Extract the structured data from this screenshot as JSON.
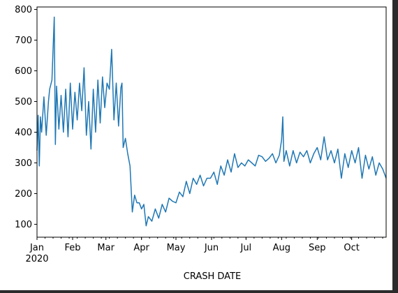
{
  "chart_data": {
    "type": "line",
    "xlabel": "CRASH DATE",
    "ylabel": "",
    "title": "",
    "x_range": [
      "2020-01-01",
      "2020-10-31"
    ],
    "ylim": [
      58,
      808
    ],
    "grid": false,
    "y_ticks": [
      100,
      200,
      300,
      400,
      500,
      600,
      700,
      800
    ],
    "x_ticks": [
      {
        "date": "2020-01-01",
        "label": "Jan",
        "sublabel": "2020"
      },
      {
        "date": "2020-02-01",
        "label": "Feb"
      },
      {
        "date": "2020-03-01",
        "label": "Mar"
      },
      {
        "date": "2020-04-01",
        "label": "Apr"
      },
      {
        "date": "2020-05-01",
        "label": "May"
      },
      {
        "date": "2020-06-01",
        "label": "Jun"
      },
      {
        "date": "2020-07-01",
        "label": "Jul"
      },
      {
        "date": "2020-08-01",
        "label": "Aug"
      },
      {
        "date": "2020-09-01",
        "label": "Sep"
      },
      {
        "date": "2020-10-01",
        "label": "Oct"
      }
    ],
    "line_color": "#1f77b4",
    "series": [
      {
        "x": [
          "2020-01-01",
          "2020-01-02",
          "2020-01-03",
          "2020-01-04",
          "2020-01-05",
          "2020-01-07",
          "2020-01-09",
          "2020-01-11",
          "2020-01-12",
          "2020-01-14",
          "2020-01-16",
          "2020-01-17",
          "2020-01-18",
          "2020-01-20",
          "2020-01-22",
          "2020-01-24",
          "2020-01-26",
          "2020-01-28",
          "2020-01-30",
          "2020-02-01",
          "2020-02-03",
          "2020-02-05",
          "2020-02-07",
          "2020-02-09",
          "2020-02-11",
          "2020-02-13",
          "2020-02-15",
          "2020-02-17",
          "2020-02-19",
          "2020-02-21",
          "2020-02-23",
          "2020-02-25",
          "2020-02-27",
          "2020-02-29",
          "2020-03-02",
          "2020-03-04",
          "2020-03-06",
          "2020-03-08",
          "2020-03-10",
          "2020-03-12",
          "2020-03-14",
          "2020-03-15",
          "2020-03-16",
          "2020-03-18",
          "2020-03-20",
          "2020-03-22",
          "2020-03-24",
          "2020-03-26",
          "2020-03-28",
          "2020-03-30",
          "2020-04-01",
          "2020-04-03",
          "2020-04-05",
          "2020-04-07",
          "2020-04-10",
          "2020-04-13",
          "2020-04-16",
          "2020-04-19",
          "2020-04-22",
          "2020-04-25",
          "2020-04-28",
          "2020-05-01",
          "2020-05-04",
          "2020-05-07",
          "2020-05-10",
          "2020-05-13",
          "2020-05-16",
          "2020-05-19",
          "2020-05-22",
          "2020-05-25",
          "2020-05-28",
          "2020-05-31",
          "2020-06-03",
          "2020-06-06",
          "2020-06-09",
          "2020-06-12",
          "2020-06-15",
          "2020-06-18",
          "2020-06-21",
          "2020-06-24",
          "2020-06-27",
          "2020-06-30",
          "2020-07-03",
          "2020-07-06",
          "2020-07-09",
          "2020-07-12",
          "2020-07-15",
          "2020-07-18",
          "2020-07-21",
          "2020-07-24",
          "2020-07-27",
          "2020-07-30",
          "2020-08-01",
          "2020-08-02",
          "2020-08-03",
          "2020-08-05",
          "2020-08-08",
          "2020-08-11",
          "2020-08-14",
          "2020-08-17",
          "2020-08-20",
          "2020-08-23",
          "2020-08-26",
          "2020-08-29",
          "2020-09-01",
          "2020-09-04",
          "2020-09-07",
          "2020-09-10",
          "2020-09-13",
          "2020-09-16",
          "2020-09-19",
          "2020-09-22",
          "2020-09-25",
          "2020-09-28",
          "2020-10-01",
          "2020-10-04",
          "2020-10-07",
          "2020-10-10",
          "2020-10-13",
          "2020-10-16",
          "2020-10-19",
          "2020-10-22",
          "2020-10-25",
          "2020-10-28",
          "2020-10-31"
        ],
        "y": [
          340,
          455,
          290,
          450,
          400,
          515,
          390,
          500,
          540,
          570,
          775,
          360,
          550,
          410,
          520,
          400,
          540,
          385,
          560,
          410,
          530,
          440,
          560,
          470,
          610,
          390,
          500,
          345,
          540,
          400,
          570,
          430,
          580,
          480,
          560,
          540,
          670,
          440,
          560,
          420,
          545,
          560,
          350,
          380,
          330,
          290,
          140,
          195,
          170,
          170,
          150,
          165,
          95,
          125,
          110,
          150,
          120,
          165,
          140,
          185,
          175,
          170,
          205,
          190,
          240,
          200,
          250,
          230,
          260,
          225,
          250,
          250,
          270,
          230,
          290,
          260,
          310,
          270,
          330,
          285,
          300,
          290,
          310,
          300,
          290,
          325,
          320,
          305,
          315,
          330,
          300,
          325,
          375,
          450,
          305,
          340,
          290,
          340,
          300,
          335,
          320,
          340,
          300,
          330,
          350,
          310,
          385,
          310,
          340,
          300,
          345,
          250,
          330,
          285,
          340,
          300,
          350,
          250,
          325,
          280,
          320,
          260,
          300,
          280,
          250
        ]
      }
    ]
  }
}
